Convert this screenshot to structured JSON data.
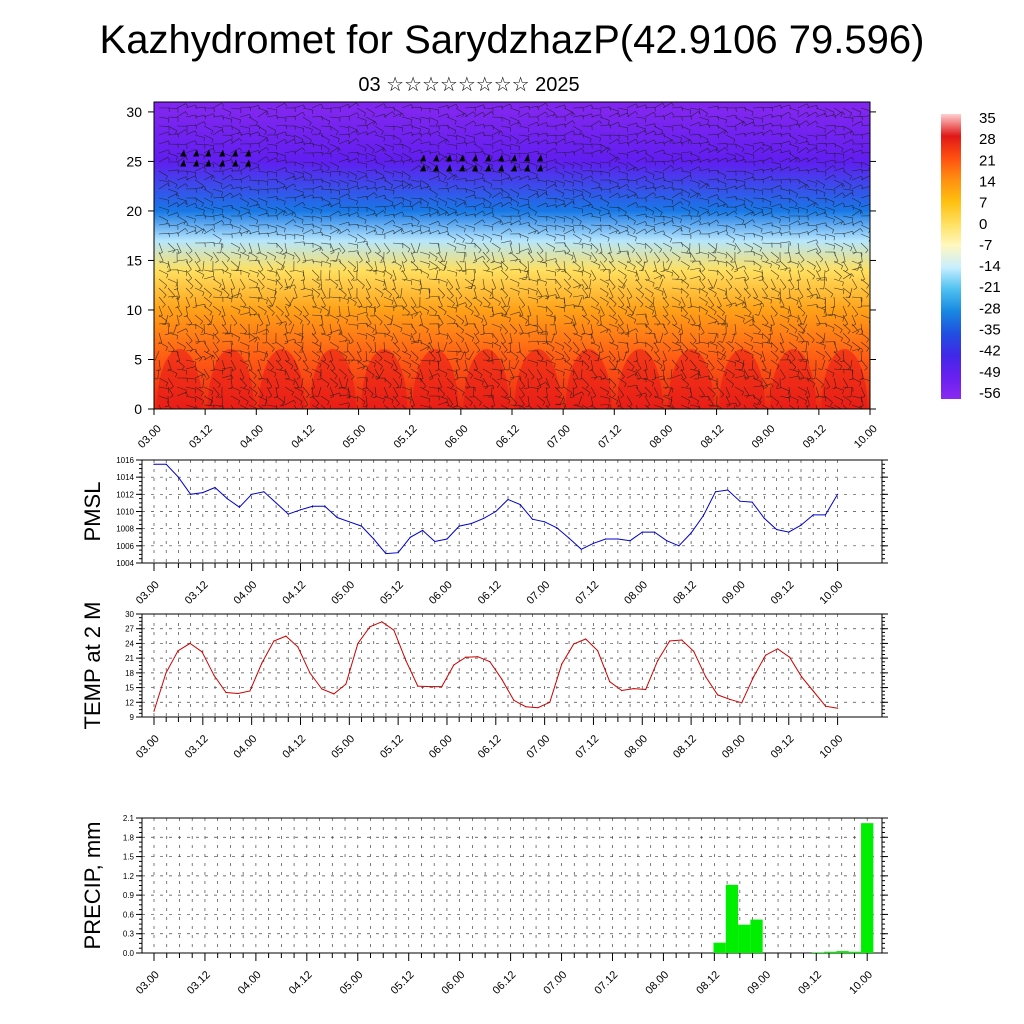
{
  "title": "Kazhydromet for SarydzhazP(42.9106 79.596)",
  "subtitle": "03 ☆☆☆☆☆☆☆☆ 2025",
  "chart_data": [
    {
      "type": "heatmap",
      "title": "",
      "xlabel": "",
      "ylabel": "",
      "x_tick_labels": [
        "03.00",
        "03.12",
        "04.00",
        "04.12",
        "05.00",
        "05.12",
        "06.00",
        "06.12",
        "07.00",
        "07.12",
        "08.00",
        "08.12",
        "09.00",
        "09.12",
        "10.00"
      ],
      "y_ticks": [
        0,
        5,
        10,
        15,
        20,
        25,
        30
      ],
      "ylim": [
        0,
        31
      ],
      "colorbar_labels": [
        "35",
        "28",
        "21",
        "14",
        "7",
        "0",
        "-7",
        "-14",
        "-21",
        "-28",
        "-35",
        "-42",
        "-49",
        "-56"
      ],
      "colorbar_colors": [
        "#ffd0d0",
        "#e01818",
        "#ff5010",
        "#ff9010",
        "#ffc010",
        "#ffe060",
        "#fff8c0",
        "#c8eeff",
        "#4ec0f0",
        "#1888e0",
        "#2050e0",
        "#4028e8",
        "#6820f0",
        "#8a2af0"
      ],
      "note_levels": [
        {
          "level": 0,
          "value": 22
        },
        {
          "level": 5,
          "value": 17
        },
        {
          "level": 10,
          "value": 9
        },
        {
          "level": 14,
          "value": -2
        },
        {
          "level": 17,
          "value": -16
        },
        {
          "level": 20,
          "value": -30
        },
        {
          "level": 25,
          "value": -50
        },
        {
          "level": 30,
          "value": -58
        }
      ]
    },
    {
      "type": "line",
      "title": "",
      "ylabel": "PMSL",
      "series_color": "#0000cc",
      "x_tick_labels": [
        "03.00",
        "03.12",
        "04.00",
        "04.12",
        "05.00",
        "05.12",
        "06.00",
        "06.12",
        "07.00",
        "07.12",
        "08.00",
        "08.12",
        "09.00",
        "09.12",
        "10.00"
      ],
      "y_ticks": [
        1004,
        1006,
        1008,
        1010,
        1012,
        1014,
        1016
      ],
      "ylim": [
        1004,
        1016
      ],
      "values": [
        1015.5,
        1015.5,
        1014,
        1012,
        1012.2,
        1012.8,
        1011.5,
        1010.5,
        1012,
        1012.3,
        1011,
        1009.7,
        1010.2,
        1010.6,
        1010.6,
        1009.3,
        1008.8,
        1008.3,
        1006.8,
        1005.1,
        1005.2,
        1007,
        1007.8,
        1006.5,
        1006.8,
        1008.3,
        1008.6,
        1009.2,
        1010,
        1011.4,
        1010.8,
        1009.1,
        1008.8,
        1008.1,
        1006.9,
        1005.6,
        1006.3,
        1006.8,
        1006.8,
        1006.6,
        1007.6,
        1007.6,
        1006.6,
        1006,
        1007.5,
        1009.5,
        1012.3,
        1012.5,
        1011.2,
        1011.1,
        1009.2,
        1007.9,
        1007.6,
        1008.4,
        1009.6,
        1009.6,
        1012
      ]
    },
    {
      "type": "line",
      "title": "",
      "ylabel": "TEMP at 2 M",
      "series_color": "#cc0000",
      "x_tick_labels": [
        "03.00",
        "03.12",
        "04.00",
        "04.12",
        "05.00",
        "05.12",
        "06.00",
        "06.12",
        "07.00",
        "07.12",
        "08.00",
        "08.12",
        "09.00",
        "09.12",
        "10.00"
      ],
      "y_ticks": [
        9,
        12,
        15,
        18,
        21,
        24,
        27,
        30
      ],
      "ylim": [
        9,
        30
      ],
      "values": [
        10.2,
        18,
        22.5,
        24,
        22.3,
        17.5,
        14,
        13.8,
        14.3,
        20,
        24.5,
        25.5,
        23.3,
        18,
        14.7,
        13.7,
        15.7,
        24,
        27.4,
        28.4,
        26.7,
        20.5,
        15.3,
        15.2,
        15.2,
        19.6,
        21.2,
        21.3,
        20.3,
        16.7,
        12.4,
        11.1,
        10.9,
        12,
        19.8,
        23.9,
        24.9,
        22.5,
        16.2,
        14.4,
        14.8,
        14.6,
        20.5,
        24.5,
        24.7,
        22.4,
        17.2,
        13.5,
        12.6,
        11.9,
        17.2,
        21.6,
        22.9,
        21.2,
        17.2,
        14.2,
        11.2,
        10.8
      ]
    },
    {
      "type": "bar",
      "title": "",
      "ylabel": "PRECIP, mm",
      "series_color": "#00ee00",
      "x_tick_labels": [
        "03.00",
        "03.12",
        "04.00",
        "04.12",
        "05.00",
        "05.12",
        "06.00",
        "06.12",
        "07.00",
        "07.12",
        "08.00",
        "08.12",
        "09.00",
        "09.12",
        "10.00"
      ],
      "y_ticks": [
        0.0,
        0.3,
        0.6,
        0.9,
        1.2,
        1.5,
        1.8,
        2.1
      ],
      "ylim": [
        0,
        2.1
      ],
      "values": [
        0,
        0,
        0,
        0,
        0,
        0,
        0,
        0,
        0,
        0,
        0,
        0,
        0,
        0,
        0,
        0,
        0,
        0,
        0,
        0,
        0,
        0,
        0,
        0,
        0,
        0,
        0,
        0,
        0,
        0,
        0,
        0,
        0,
        0,
        0,
        0,
        0,
        0,
        0,
        0,
        0,
        0,
        0,
        0,
        0,
        0,
        0.16,
        1.06,
        0.44,
        0.52,
        0,
        0,
        0,
        0,
        0.01,
        0.02,
        0.03,
        0.02,
        2.02
      ]
    }
  ]
}
